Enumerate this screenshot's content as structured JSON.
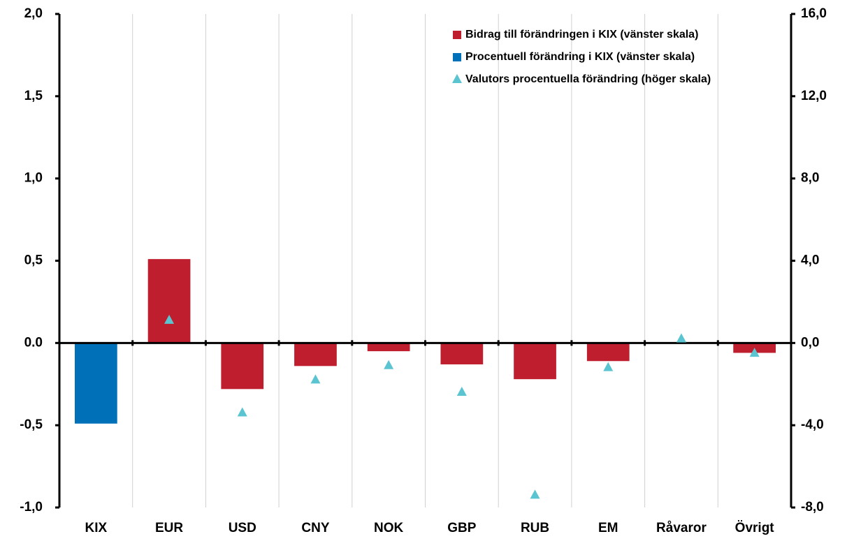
{
  "chart_data": {
    "type": "bar",
    "categories": [
      "KIX",
      "EUR",
      "USD",
      "CNY",
      "NOK",
      "GBP",
      "RUB",
      "EM",
      "Råvaror",
      "Övrigt"
    ],
    "series": [
      {
        "name": "Bidrag till förändringen i KIX (vänster skala)",
        "color": "#be1e2d",
        "type": "bar",
        "values": [
          null,
          0.51,
          -0.28,
          -0.14,
          -0.05,
          -0.13,
          -0.22,
          -0.11,
          null,
          -0.06
        ]
      },
      {
        "name": "Procentuell förändring i KIX (vänster skala)",
        "color": "#0070b8",
        "type": "bar",
        "values": [
          -0.49,
          null,
          null,
          null,
          null,
          null,
          null,
          null,
          null,
          null
        ]
      },
      {
        "name": "Valutors procentuella förändring (höger skala)",
        "color": "#5bc4d1",
        "type": "scatter",
        "axis": "y2",
        "values": [
          null,
          1.1,
          -3.4,
          -1.8,
          -1.1,
          -2.4,
          -7.4,
          -1.2,
          0.2,
          -0.5
        ]
      }
    ],
    "ylim": [
      -1.0,
      2.0
    ],
    "yticks": [
      {
        "value": -1.0,
        "label": "-1,0"
      },
      {
        "value": -0.5,
        "label": "-0,5"
      },
      {
        "value": 0.0,
        "label": "0.0"
      },
      {
        "value": 0.5,
        "label": "0,5"
      },
      {
        "value": 1.0,
        "label": "1,0"
      },
      {
        "value": 1.5,
        "label": "1,5"
      },
      {
        "value": 2.0,
        "label": "2,0"
      }
    ],
    "y2lim": [
      -8.0,
      16.0
    ],
    "y2ticks": [
      {
        "value": -8.0,
        "label": "-8,0"
      },
      {
        "value": -4.0,
        "label": "-4,0"
      },
      {
        "value": 0.0,
        "label": "0,0"
      },
      {
        "value": 4.0,
        "label": "4,0"
      },
      {
        "value": 8.0,
        "label": "8,0"
      },
      {
        "value": 12.0,
        "label": "12,0"
      },
      {
        "value": 16.0,
        "label": "16,0"
      }
    ],
    "grid": true,
    "legend": "top-right"
  }
}
